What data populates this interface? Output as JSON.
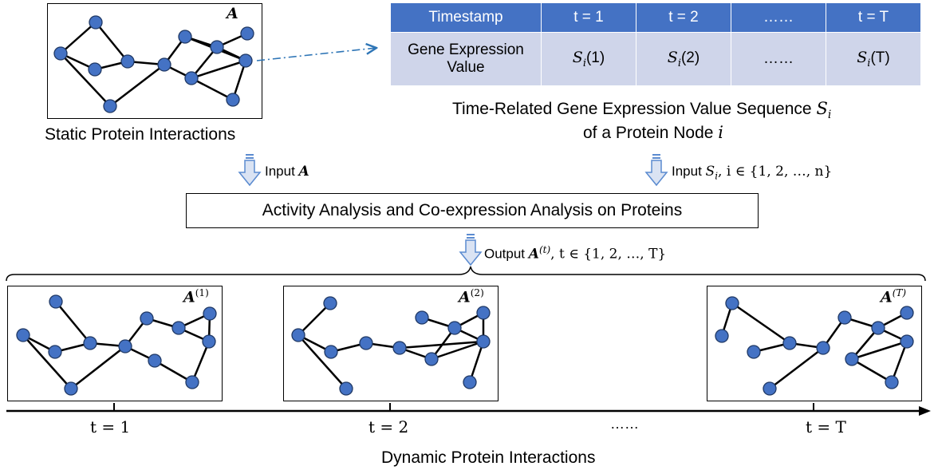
{
  "static_graph": {
    "label": "A",
    "caption": "Static Protein Interactions"
  },
  "sequence_table": {
    "header": [
      "Timestamp",
      "t = 1",
      "t = 2",
      "……",
      "t = T"
    ],
    "row_label_line1": "Gene Expression",
    "row_label_line2": "Value",
    "cells": [
      {
        "symbol": "S",
        "sub": "i",
        "arg": "(1)"
      },
      {
        "symbol": "S",
        "sub": "i",
        "arg": "(2)"
      },
      {
        "ellipsis": "……"
      },
      {
        "symbol": "S",
        "sub": "i",
        "arg": "(T)"
      }
    ],
    "caption_line1": "Time-Related Gene Expression Value Sequence",
    "caption_symbol": "S",
    "caption_sub": "i",
    "caption_line2": "of a Protein Node",
    "caption_node": "i"
  },
  "inputs": {
    "left_label": "Input",
    "left_symbol": "A",
    "right_label": "Input",
    "right_math": "S",
    "right_sub": "i",
    "right_rest": ", i  ∈ {1, 2, …, n}"
  },
  "process": {
    "label": "Activity Analysis and Co-expression Analysis on Proteins"
  },
  "output": {
    "label": "Output",
    "symbol": "A",
    "sup": "(t)",
    "rest": ", t  ∈ {1, 2, …, T}"
  },
  "dynamic_graphs": [
    {
      "symbol": "A",
      "sup": "(1)"
    },
    {
      "symbol": "A",
      "sup": "(2)"
    },
    {
      "symbol": "A",
      "sup": "(T)"
    }
  ],
  "timeline": {
    "ticks": [
      "t = 1",
      "t = 2",
      "t = T"
    ],
    "ellipsis": "……",
    "caption": "Dynamic Protein Interactions"
  },
  "colors": {
    "node_fill": "#4472c4",
    "node_stroke": "#1f3864",
    "table_header": "#4472c4",
    "table_body": "#cfd5ea",
    "arrow_fill": "#dae3f3",
    "arrow_stroke": "#5b8bd0",
    "dashdot": "#2e75b6"
  }
}
